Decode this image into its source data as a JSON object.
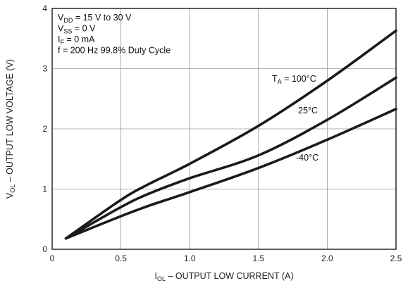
{
  "chart_data": {
    "type": "line",
    "xlabel": {
      "main": "I",
      "sub": "OL",
      "rest": " – OUTPUT LOW CURRENT (A)"
    },
    "ylabel": {
      "main": "V",
      "sub": "OL",
      "rest": " – OUTPUT LOW VOLTAGE (V)"
    },
    "xlim": [
      0,
      2.5
    ],
    "ylim": [
      0,
      4
    ],
    "x_ticks": [
      "0",
      "0.5",
      "1.0",
      "1.5",
      "2.0",
      "2.5"
    ],
    "y_ticks": [
      "0",
      "1",
      "2",
      "3",
      "4"
    ],
    "x_tick_values": [
      0,
      0.5,
      1.0,
      1.5,
      2.0,
      2.5
    ],
    "y_tick_values": [
      0,
      1,
      2,
      3,
      4
    ],
    "grid": true,
    "conditions": [
      {
        "main": "V",
        "sub": "DD",
        "rest": " = 15 V to 30 V"
      },
      {
        "main": "V",
        "sub": "SS",
        "rest": " = 0 V"
      },
      {
        "main": "I",
        "sub": "F",
        "rest": " = 0 mA"
      },
      {
        "main": "f = 200 Hz 99.8% Duty Cycle",
        "sub": "",
        "rest": ""
      }
    ],
    "series": [
      {
        "label": {
          "main": "T",
          "sub": "A",
          "rest": " = 100°C"
        },
        "x": [
          0.1,
          0.5,
          0.7,
          1.0,
          1.5,
          2.0,
          2.5
        ],
        "y": [
          0.18,
          0.82,
          1.08,
          1.42,
          2.05,
          2.8,
          3.63
        ]
      },
      {
        "label": {
          "main": "25°C",
          "sub": "",
          "rest": ""
        },
        "x": [
          0.1,
          0.5,
          0.7,
          1.0,
          1.5,
          2.0,
          2.5
        ],
        "y": [
          0.18,
          0.7,
          0.92,
          1.18,
          1.56,
          2.15,
          2.85
        ]
      },
      {
        "label": {
          "main": "-40°C",
          "sub": "",
          "rest": ""
        },
        "x": [
          0.1,
          0.5,
          0.7,
          1.0,
          1.5,
          2.0,
          2.5
        ],
        "y": [
          0.18,
          0.55,
          0.72,
          0.95,
          1.35,
          1.82,
          2.33
        ]
      }
    ]
  }
}
